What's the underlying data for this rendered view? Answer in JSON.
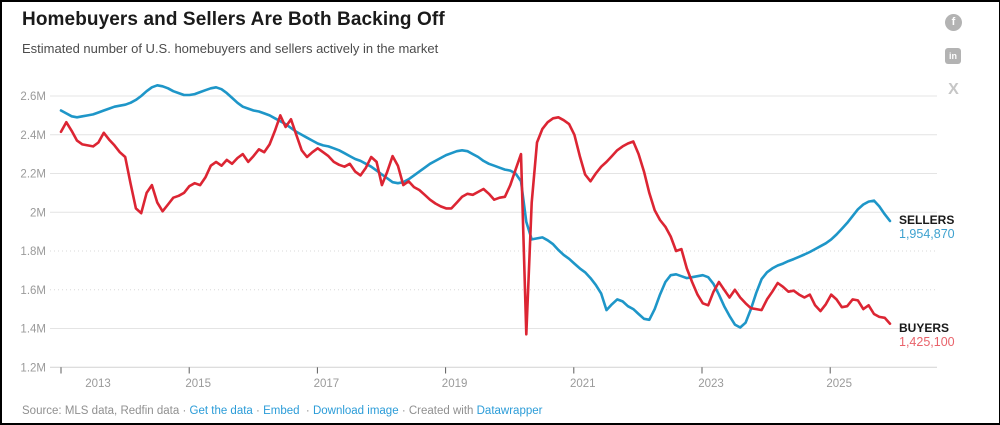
{
  "header": {
    "title": "Homebuyers and Sellers Are Both Backing Off",
    "subtitle": "Estimated number of U.S. homebuyers and sellers actively in the market"
  },
  "share": {
    "facebook_glyph": "f",
    "linkedin_glyph": "in",
    "x_glyph": "X"
  },
  "chart_data": {
    "type": "line",
    "title": "Homebuyers and Sellers Are Both Backing Off",
    "subtitle": "Estimated number of U.S. homebuyers and sellers actively in the market",
    "frequency": "monthly",
    "x_range": [
      "2013-01",
      "2025-12"
    ],
    "ylim": [
      1.2,
      2.7
    ],
    "grid": true,
    "legend_position": "end-of-line-labels",
    "y_axis": {
      "unit": "M",
      "ticks": [
        {
          "label": "2.6M",
          "value": 2.6,
          "dotted": false
        },
        {
          "label": "2.4M",
          "value": 2.4,
          "dotted": false
        },
        {
          "label": "2.2M",
          "value": 2.2,
          "dotted": false
        },
        {
          "label": "2M",
          "value": 2.0,
          "dotted": false
        },
        {
          "label": "1.8M",
          "value": 1.8,
          "dotted": true
        },
        {
          "label": "1.6M",
          "value": 1.6,
          "dotted": true
        },
        {
          "label": "1.4M",
          "value": 1.4,
          "dotted": false
        },
        {
          "label": "1.2M",
          "value": 1.2,
          "dotted": false
        }
      ]
    },
    "x_axis": {
      "ticks": [
        {
          "year": "2013"
        },
        {
          "year": "2015"
        },
        {
          "year": "2017"
        },
        {
          "year": "2019"
        },
        {
          "year": "2021"
        },
        {
          "year": "2023"
        },
        {
          "year": "2025"
        }
      ]
    },
    "series": [
      {
        "name": "SELLERS",
        "color": "#1e96c8",
        "value_color": "#3da1cf",
        "end_value_label": "1,954,870",
        "values": [
          2.525,
          2.51,
          2.495,
          2.49,
          2.495,
          2.5,
          2.505,
          2.515,
          2.525,
          2.535,
          2.545,
          2.55,
          2.555,
          2.565,
          2.58,
          2.6,
          2.625,
          2.645,
          2.655,
          2.65,
          2.64,
          2.625,
          2.615,
          2.605,
          2.605,
          2.61,
          2.62,
          2.63,
          2.64,
          2.645,
          2.635,
          2.615,
          2.59,
          2.565,
          2.545,
          2.535,
          2.525,
          2.52,
          2.51,
          2.5,
          2.485,
          2.47,
          2.455,
          2.435,
          2.415,
          2.4,
          2.385,
          2.37,
          2.355,
          2.345,
          2.34,
          2.33,
          2.32,
          2.305,
          2.29,
          2.275,
          2.265,
          2.25,
          2.235,
          2.215,
          2.195,
          2.175,
          2.155,
          2.15,
          2.155,
          2.17,
          2.19,
          2.21,
          2.23,
          2.25,
          2.265,
          2.28,
          2.295,
          2.305,
          2.315,
          2.32,
          2.315,
          2.3,
          2.285,
          2.265,
          2.25,
          2.24,
          2.23,
          2.22,
          2.215,
          2.2,
          2.16,
          1.95,
          1.86,
          1.865,
          1.87,
          1.855,
          1.835,
          1.805,
          1.78,
          1.76,
          1.735,
          1.71,
          1.69,
          1.66,
          1.625,
          1.58,
          1.495,
          1.525,
          1.55,
          1.54,
          1.515,
          1.5,
          1.475,
          1.45,
          1.445,
          1.5,
          1.575,
          1.64,
          1.675,
          1.68,
          1.67,
          1.66,
          1.665,
          1.67,
          1.675,
          1.665,
          1.63,
          1.575,
          1.515,
          1.465,
          1.42,
          1.405,
          1.43,
          1.5,
          1.585,
          1.655,
          1.69,
          1.71,
          1.725,
          1.735,
          1.748,
          1.758,
          1.77,
          1.782,
          1.795,
          1.81,
          1.825,
          1.84,
          1.86,
          1.885,
          1.915,
          1.945,
          1.98,
          2.015,
          2.04,
          2.055,
          2.06,
          2.03,
          1.99,
          1.955
        ]
      },
      {
        "name": "BUYERS",
        "color": "#dc2533",
        "value_color": "#e9636b",
        "end_value_label": "1,425,100",
        "values": [
          2.415,
          2.465,
          2.42,
          2.37,
          2.35,
          2.345,
          2.34,
          2.36,
          2.41,
          2.375,
          2.345,
          2.31,
          2.285,
          2.15,
          2.02,
          1.995,
          2.1,
          2.14,
          2.05,
          2.005,
          2.04,
          2.075,
          2.085,
          2.1,
          2.135,
          2.15,
          2.14,
          2.18,
          2.24,
          2.26,
          2.24,
          2.27,
          2.25,
          2.28,
          2.3,
          2.26,
          2.29,
          2.325,
          2.31,
          2.35,
          2.42,
          2.5,
          2.44,
          2.48,
          2.4,
          2.32,
          2.285,
          2.31,
          2.33,
          2.31,
          2.29,
          2.26,
          2.245,
          2.235,
          2.25,
          2.21,
          2.19,
          2.23,
          2.285,
          2.26,
          2.14,
          2.21,
          2.29,
          2.24,
          2.14,
          2.16,
          2.13,
          2.115,
          2.09,
          2.065,
          2.045,
          2.03,
          2.02,
          2.02,
          2.05,
          2.08,
          2.095,
          2.09,
          2.105,
          2.12,
          2.095,
          2.065,
          2.075,
          2.08,
          2.14,
          2.22,
          2.3,
          1.37,
          2.05,
          2.36,
          2.43,
          2.465,
          2.485,
          2.49,
          2.475,
          2.455,
          2.4,
          2.29,
          2.195,
          2.16,
          2.2,
          2.235,
          2.26,
          2.29,
          2.32,
          2.34,
          2.355,
          2.365,
          2.3,
          2.21,
          2.1,
          2.01,
          1.96,
          1.925,
          1.875,
          1.8,
          1.81,
          1.71,
          1.64,
          1.575,
          1.53,
          1.52,
          1.59,
          1.64,
          1.6,
          1.56,
          1.6,
          1.56,
          1.53,
          1.505,
          1.5,
          1.495,
          1.55,
          1.59,
          1.635,
          1.615,
          1.59,
          1.595,
          1.575,
          1.56,
          1.575,
          1.52,
          1.49,
          1.525,
          1.575,
          1.55,
          1.51,
          1.515,
          1.55,
          1.545,
          1.5,
          1.52,
          1.475,
          1.46,
          1.455,
          1.425
        ]
      }
    ]
  },
  "footer": {
    "source": "Source: MLS data, Redfin data",
    "separator": "·",
    "get_data": "Get the data",
    "embed": "Embed",
    "download": "Download image",
    "created_with": "Created with",
    "datawrapper": "Datawrapper"
  }
}
